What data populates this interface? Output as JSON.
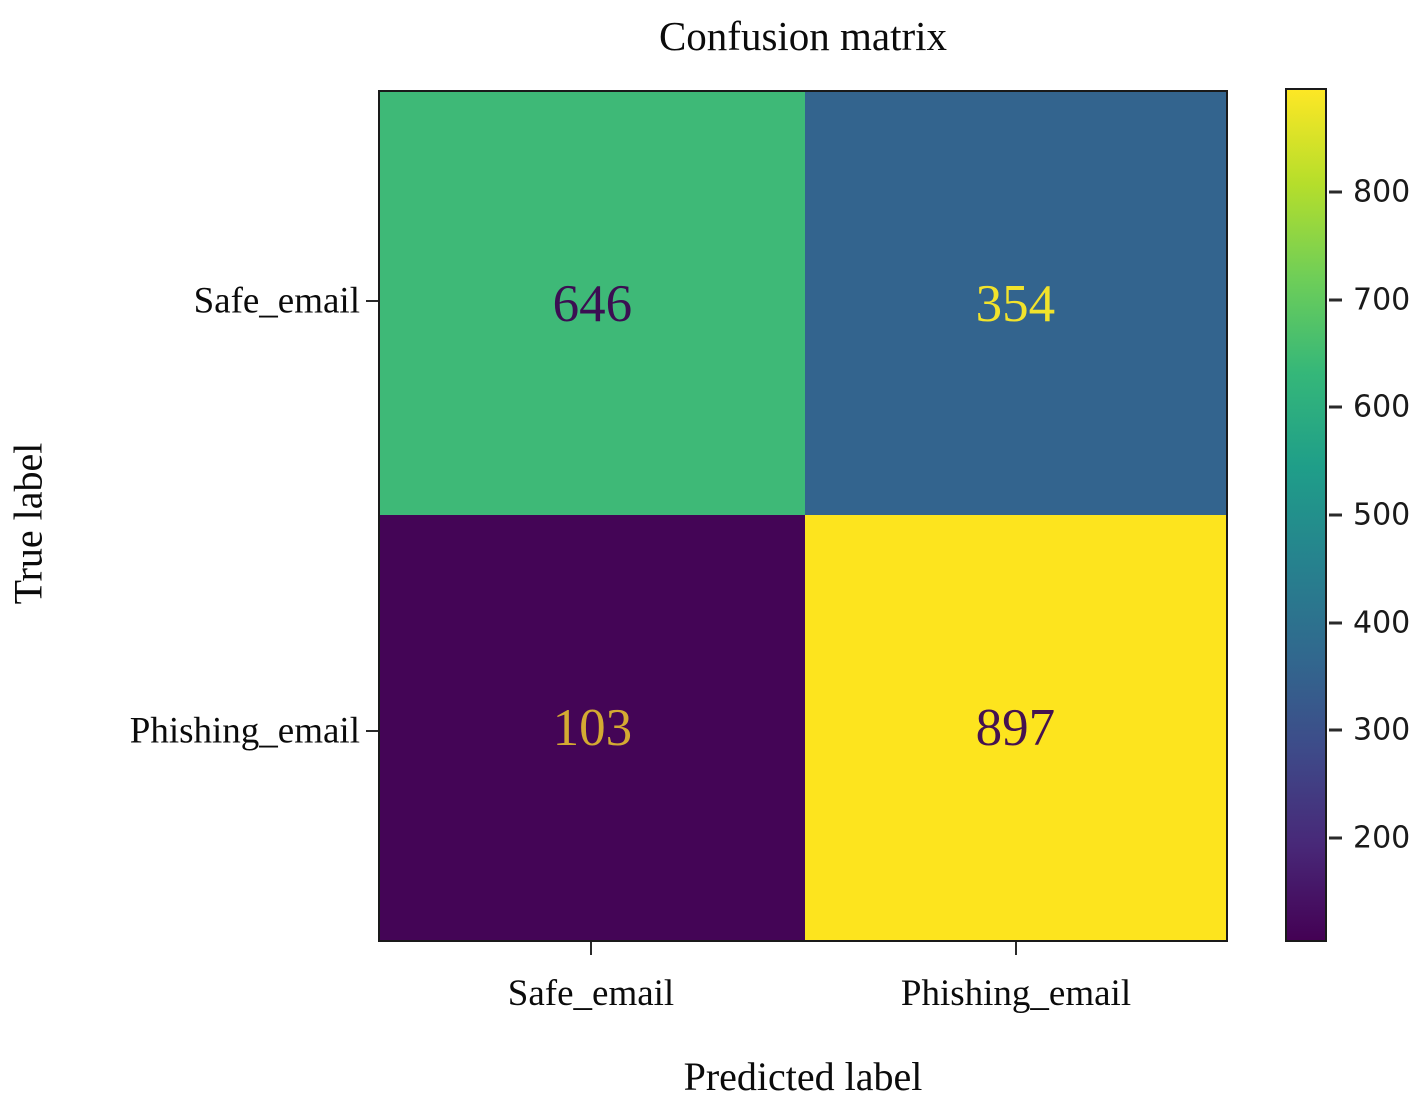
{
  "chart_data": {
    "type": "heatmap",
    "title": "Confusion matrix",
    "xlabel": "Predicted label",
    "ylabel": "True label",
    "row_labels": [
      "Safe_email",
      "Phishing_email"
    ],
    "col_labels": [
      "Safe_email",
      "Phishing_email"
    ],
    "matrix": [
      [
        646,
        354
      ],
      [
        103,
        897
      ]
    ],
    "cells": [
      {
        "row": "Safe_email",
        "col": "Safe_email",
        "value": "646",
        "bg": "#3eb977",
        "fg": "#3b0e52"
      },
      {
        "row": "Safe_email",
        "col": "Phishing_email",
        "value": "354",
        "bg": "#33648e",
        "fg": "#f2e32b"
      },
      {
        "row": "Phishing_email",
        "col": "Safe_email",
        "value": "103",
        "bg": "#440556",
        "fg": "#d4aa32"
      },
      {
        "row": "Phishing_email",
        "col": "Phishing_email",
        "value": "897",
        "bg": "#fde41e",
        "fg": "#451250"
      }
    ],
    "colorbar": {
      "colormap": "viridis",
      "vmin": 103,
      "vmax": 897,
      "ticks": [
        200,
        300,
        400,
        500,
        600,
        700,
        800
      ],
      "gradient_bottom_to_top": [
        "#440154",
        "#482878",
        "#3e4a89",
        "#31688e",
        "#26828e",
        "#1f9e89",
        "#35b779",
        "#6ece58",
        "#b5de2b",
        "#fde725"
      ]
    },
    "grid": false,
    "legend_position": "right-colorbar"
  }
}
